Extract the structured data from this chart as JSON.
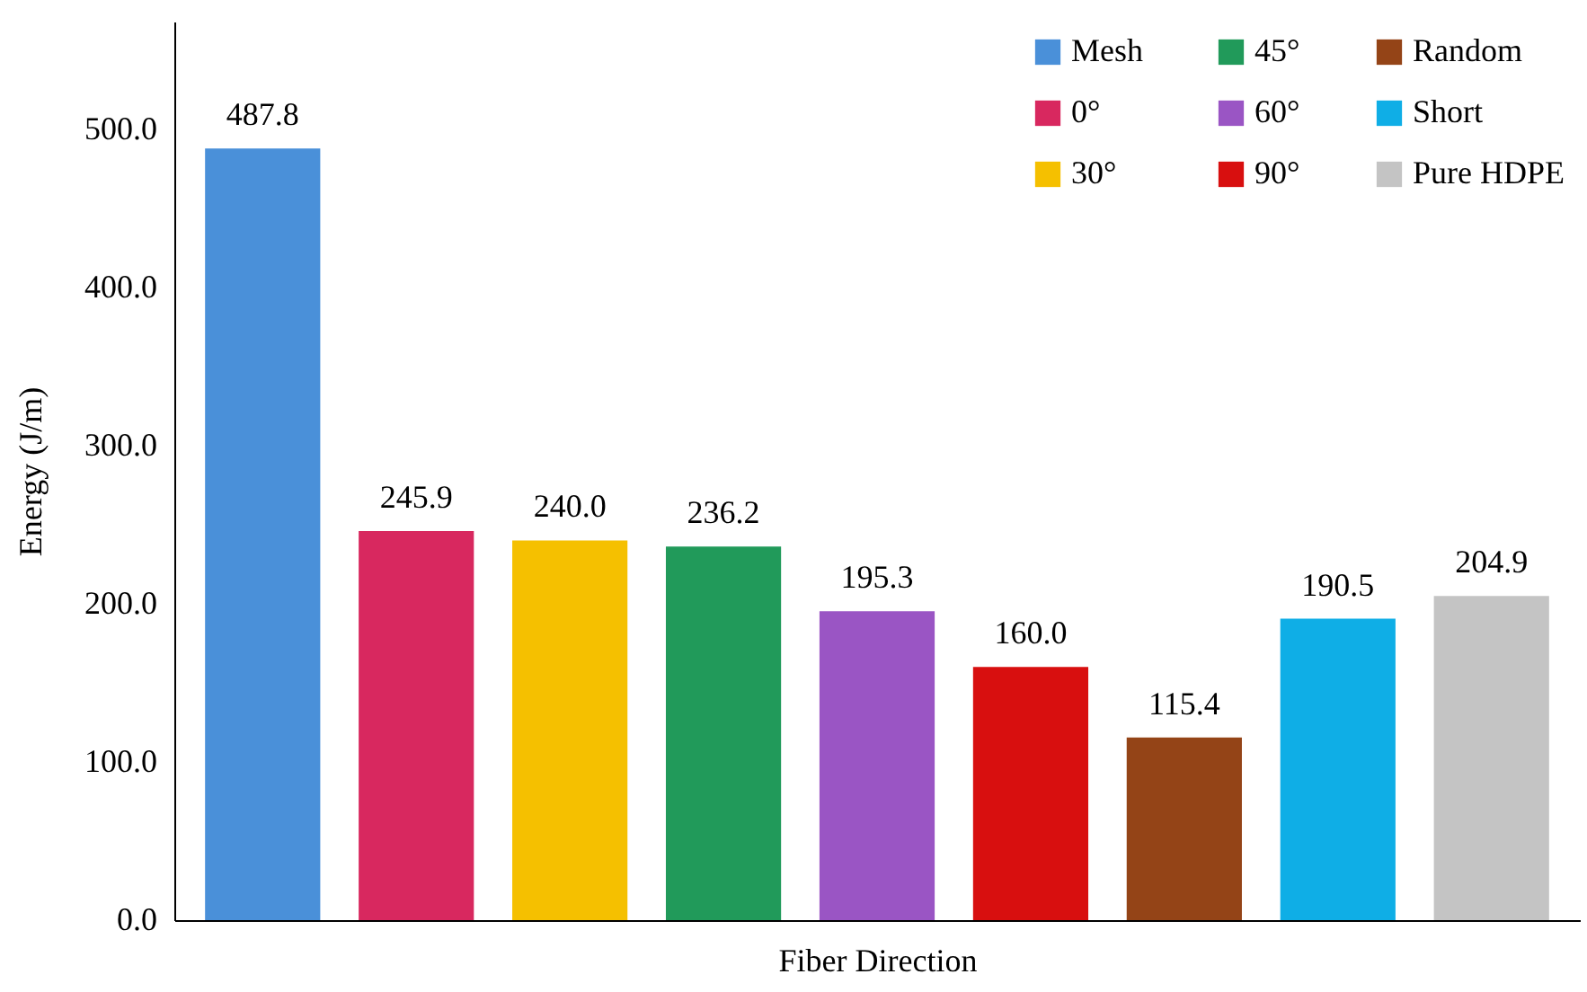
{
  "chart_data": {
    "type": "bar",
    "xlabel": "Fiber Direction",
    "ylabel": "Energy (J/m)",
    "categories": [
      null,
      null,
      null,
      null,
      null,
      null,
      null,
      null,
      null
    ],
    "series": [
      {
        "name": "Mesh",
        "color": "#4a90d9",
        "values": [
          487.8,
          null,
          null,
          null,
          null,
          null,
          null,
          null,
          null
        ],
        "value_labels": [
          "487.8",
          null,
          null,
          null,
          null,
          null,
          null,
          null,
          null
        ]
      },
      {
        "name": "0°",
        "color": "#d8285f",
        "values": [
          null,
          245.9,
          null,
          null,
          null,
          null,
          null,
          null,
          null
        ],
        "value_labels": [
          null,
          "245.9",
          null,
          null,
          null,
          null,
          null,
          null,
          null
        ]
      },
      {
        "name": "30°",
        "color": "#f5c000",
        "values": [
          null,
          null,
          240.0,
          null,
          null,
          null,
          null,
          null,
          null
        ],
        "value_labels": [
          null,
          null,
          "240.0",
          null,
          null,
          null,
          null,
          null,
          null
        ]
      },
      {
        "name": "45°",
        "color": "#219a5a",
        "values": [
          null,
          null,
          null,
          236.2,
          null,
          null,
          null,
          null,
          null
        ],
        "value_labels": [
          null,
          null,
          null,
          "236.2",
          null,
          null,
          null,
          null,
          null
        ]
      },
      {
        "name": "60°",
        "color": "#9a55c4",
        "values": [
          null,
          null,
          null,
          null,
          195.3,
          null,
          null,
          null,
          null
        ],
        "value_labels": [
          null,
          null,
          null,
          null,
          "195.3",
          null,
          null,
          null,
          null
        ]
      },
      {
        "name": "90°",
        "color": "#d80f0f",
        "values": [
          null,
          null,
          null,
          null,
          null,
          160.0,
          null,
          null,
          null
        ],
        "value_labels": [
          null,
          null,
          null,
          null,
          null,
          "160.0",
          null,
          null,
          null
        ]
      },
      {
        "name": "Random",
        "color": "#944417",
        "values": [
          null,
          null,
          null,
          null,
          null,
          null,
          115.4,
          null,
          null
        ],
        "value_labels": [
          null,
          null,
          null,
          null,
          null,
          null,
          "115.4",
          null,
          null
        ]
      },
      {
        "name": "Short",
        "color": "#0faee6",
        "values": [
          null,
          null,
          null,
          null,
          null,
          null,
          null,
          190.5,
          null
        ],
        "value_labels": [
          null,
          null,
          null,
          null,
          null,
          null,
          null,
          "190.5",
          null
        ]
      },
      {
        "name": "Pure HDPE",
        "color": "#c4c4c4",
        "values": [
          null,
          null,
          null,
          null,
          null,
          null,
          null,
          null,
          204.9
        ],
        "value_labels": [
          null,
          null,
          null,
          null,
          null,
          null,
          null,
          null,
          "204.9"
        ]
      }
    ],
    "ylim": [
      0,
      568
    ],
    "yticks": [
      {
        "value": 0,
        "label": "0.0"
      },
      {
        "value": 100,
        "label": "100.0"
      },
      {
        "value": 200,
        "label": "200.0"
      },
      {
        "value": 300,
        "label": "300.0"
      },
      {
        "value": 400,
        "label": "400.0"
      },
      {
        "value": 500,
        "label": "500.0"
      }
    ],
    "tick_labels": "y",
    "grid": false,
    "legend": "top right"
  }
}
